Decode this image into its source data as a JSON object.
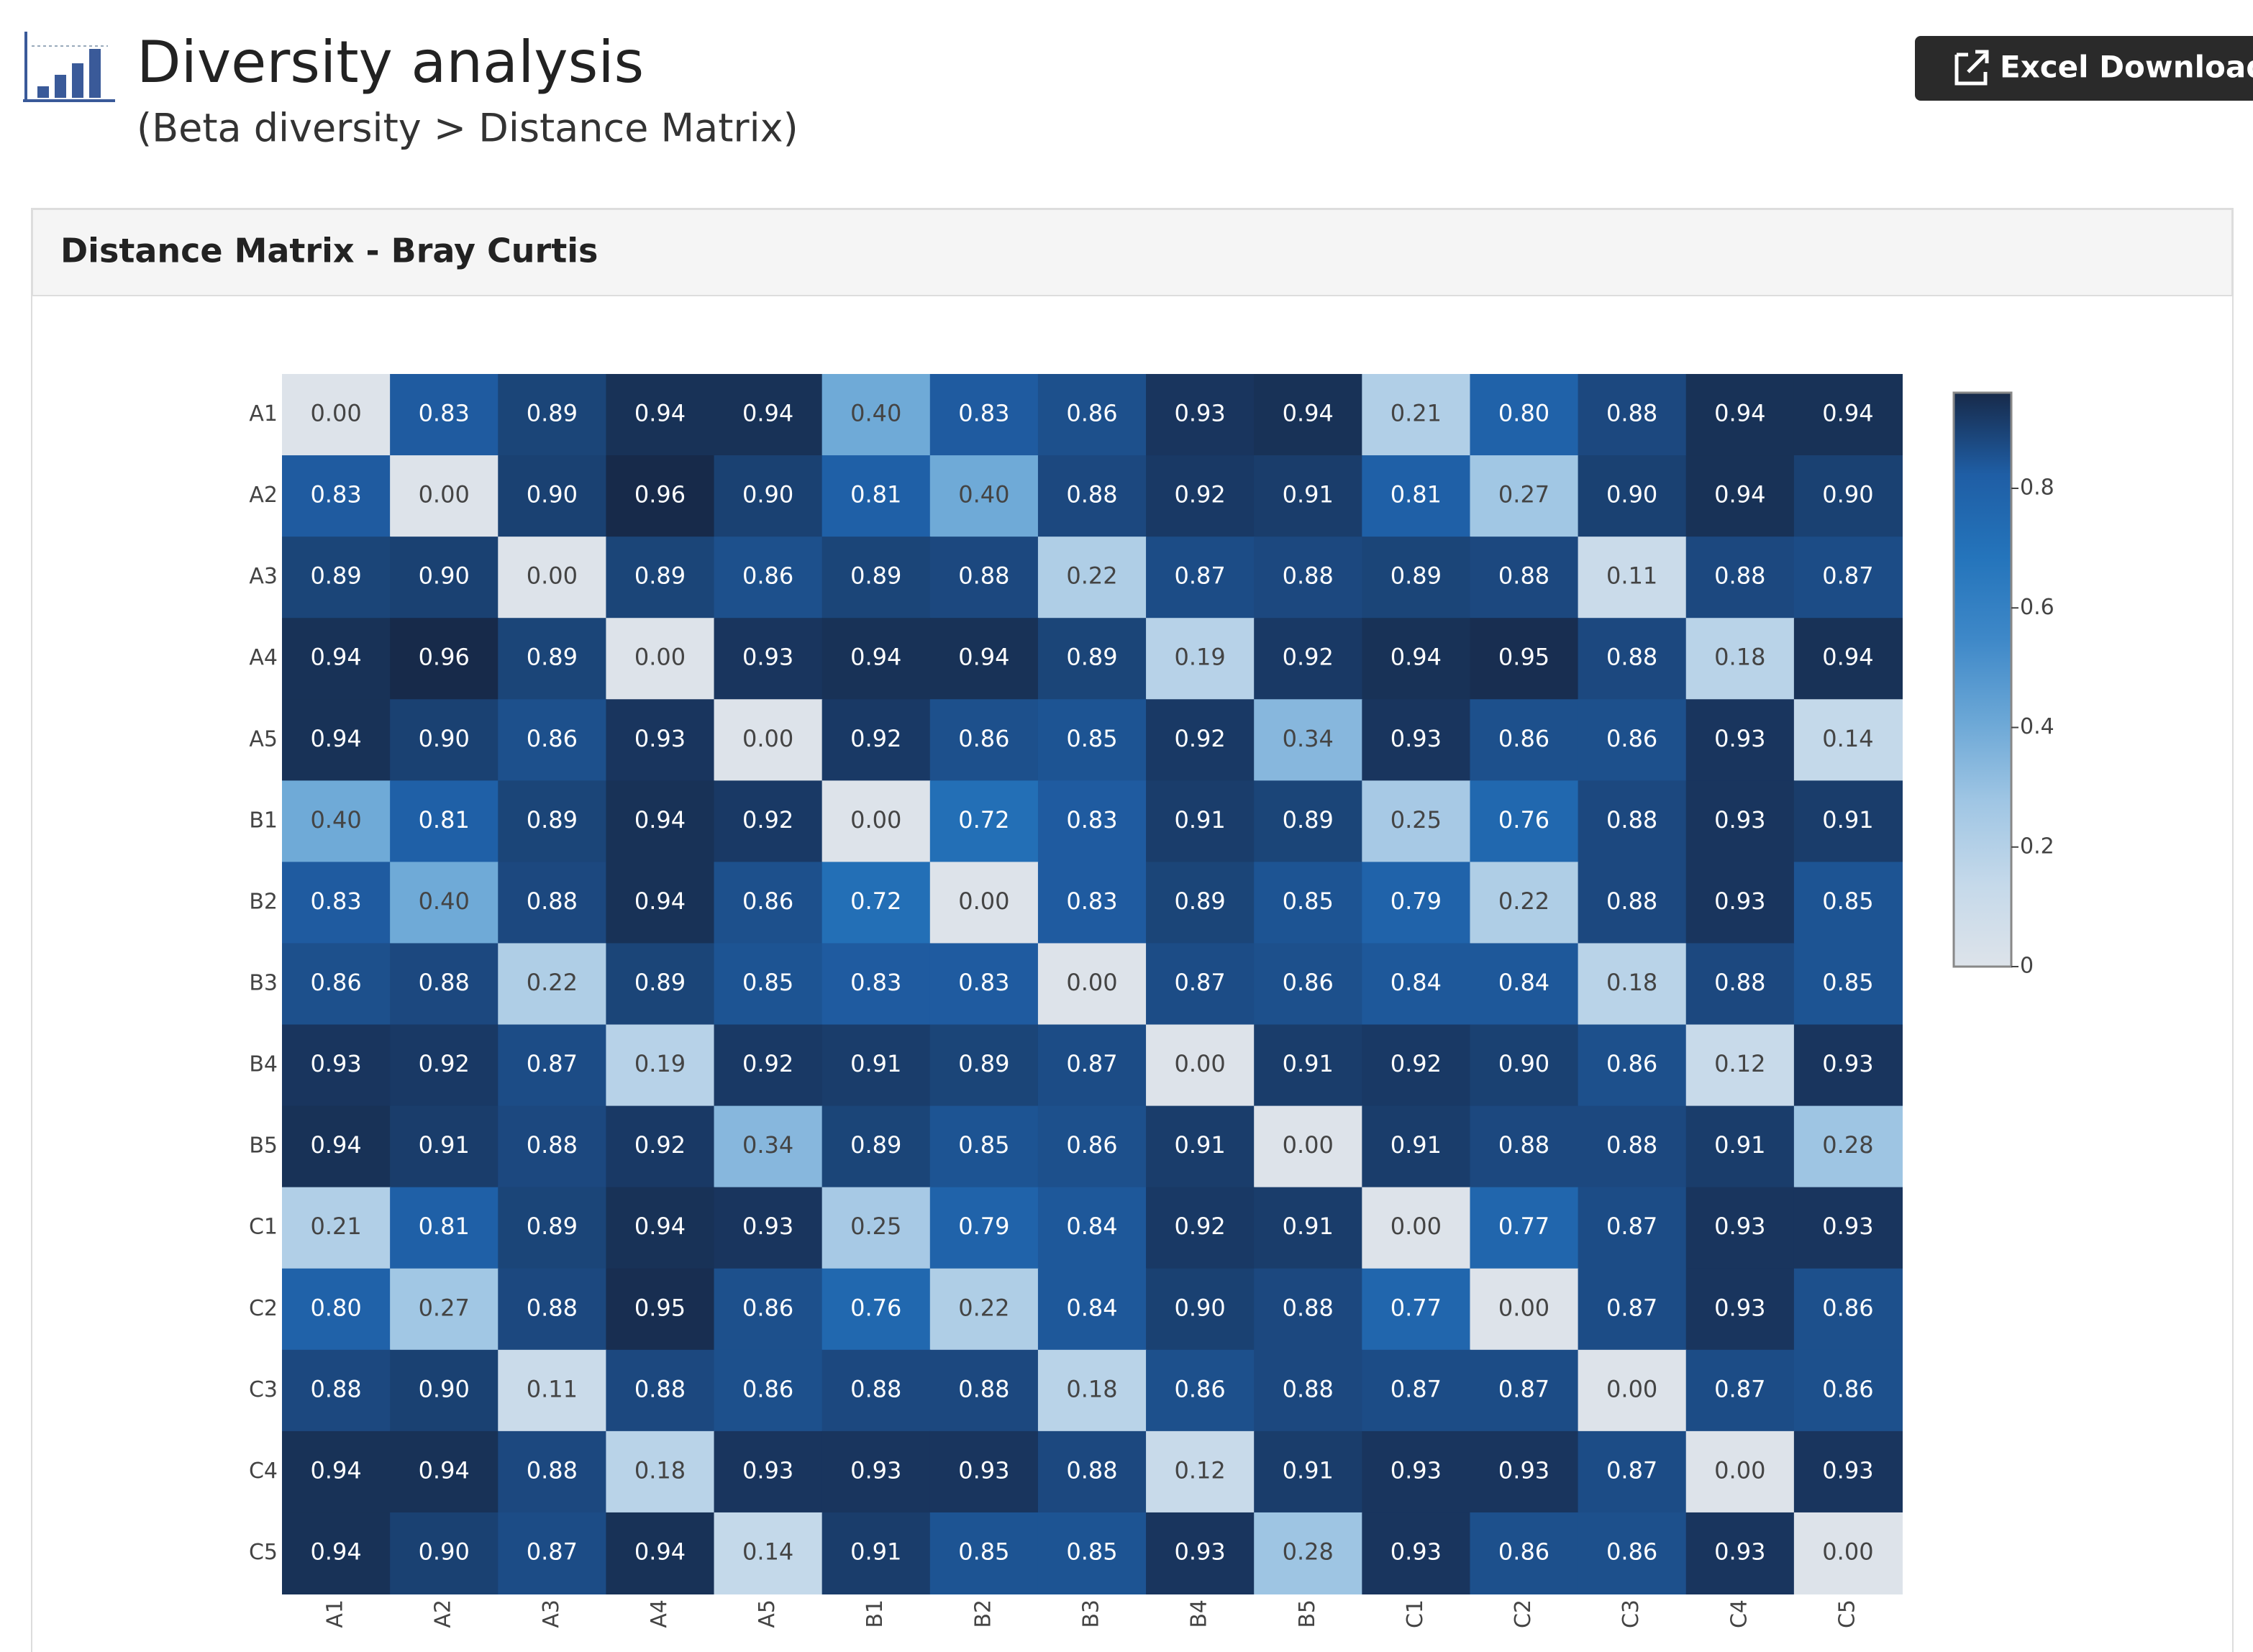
{
  "header": {
    "title": "Diversity analysis",
    "subtitle": "(Beta diversity > Distance Matrix)",
    "button": "Excel Download"
  },
  "panel": {
    "title": "Distance Matrix - Bray Curtis"
  },
  "chart_data": {
    "type": "heatmap",
    "x": [
      "A1",
      "A2",
      "A3",
      "A4",
      "A5",
      "B1",
      "B2",
      "B3",
      "B4",
      "B5",
      "C1",
      "C2",
      "C3",
      "C4",
      "C5"
    ],
    "y": [
      "A1",
      "A2",
      "A3",
      "A4",
      "A5",
      "B1",
      "B2",
      "B3",
      "B4",
      "B5",
      "C1",
      "C2",
      "C3",
      "C4",
      "C5"
    ],
    "values": [
      [
        0,
        0.83,
        0.89,
        0.94,
        0.94,
        0.4,
        0.83,
        0.86,
        0.93,
        0.94,
        0.21,
        0.8,
        0.88,
        0.94,
        0.94
      ],
      [
        0.83,
        0,
        0.9,
        0.96,
        0.9,
        0.81,
        0.4,
        0.88,
        0.92,
        0.91,
        0.81,
        0.27,
        0.9,
        0.94,
        0.9
      ],
      [
        0.89,
        0.9,
        0,
        0.89,
        0.86,
        0.89,
        0.88,
        0.22,
        0.87,
        0.88,
        0.89,
        0.88,
        0.11,
        0.88,
        0.87
      ],
      [
        0.94,
        0.96,
        0.89,
        0,
        0.93,
        0.94,
        0.94,
        0.89,
        0.19,
        0.92,
        0.94,
        0.95,
        0.88,
        0.18,
        0.94
      ],
      [
        0.94,
        0.9,
        0.86,
        0.93,
        0,
        0.92,
        0.86,
        0.85,
        0.92,
        0.34,
        0.93,
        0.86,
        0.86,
        0.93,
        0.14
      ],
      [
        0.4,
        0.81,
        0.89,
        0.94,
        0.92,
        0,
        0.72,
        0.83,
        0.91,
        0.89,
        0.25,
        0.76,
        0.88,
        0.93,
        0.91
      ],
      [
        0.83,
        0.4,
        0.88,
        0.94,
        0.86,
        0.72,
        0,
        0.83,
        0.89,
        0.85,
        0.79,
        0.22,
        0.88,
        0.93,
        0.85
      ],
      [
        0.86,
        0.88,
        0.22,
        0.89,
        0.85,
        0.83,
        0.83,
        0,
        0.87,
        0.86,
        0.84,
        0.84,
        0.18,
        0.88,
        0.85
      ],
      [
        0.93,
        0.92,
        0.87,
        0.19,
        0.92,
        0.91,
        0.89,
        0.87,
        0,
        0.91,
        0.92,
        0.9,
        0.86,
        0.12,
        0.93
      ],
      [
        0.94,
        0.91,
        0.88,
        0.92,
        0.34,
        0.89,
        0.85,
        0.86,
        0.91,
        0,
        0.91,
        0.88,
        0.88,
        0.91,
        0.28
      ],
      [
        0.21,
        0.81,
        0.89,
        0.94,
        0.93,
        0.25,
        0.79,
        0.84,
        0.92,
        0.91,
        0,
        0.77,
        0.87,
        0.93,
        0.93
      ],
      [
        0.8,
        0.27,
        0.88,
        0.95,
        0.86,
        0.76,
        0.22,
        0.84,
        0.9,
        0.88,
        0.77,
        0,
        0.87,
        0.93,
        0.86
      ],
      [
        0.88,
        0.9,
        0.11,
        0.88,
        0.86,
        0.88,
        0.88,
        0.18,
        0.86,
        0.88,
        0.87,
        0.87,
        0,
        0.87,
        0.86
      ],
      [
        0.94,
        0.94,
        0.88,
        0.18,
        0.93,
        0.93,
        0.93,
        0.88,
        0.12,
        0.91,
        0.93,
        0.93,
        0.87,
        0,
        0.93
      ],
      [
        0.94,
        0.9,
        0.87,
        0.94,
        0.14,
        0.91,
        0.85,
        0.85,
        0.93,
        0.28,
        0.93,
        0.86,
        0.86,
        0.93,
        0
      ]
    ],
    "value_labels": [
      [
        "0.00",
        "0.83",
        "0.89",
        "0.94",
        "0.94",
        "0.40",
        "0.83",
        "0.86",
        "0.93",
        "0.94",
        "0.21",
        "0.80",
        "0.88",
        "0.94",
        "0.94"
      ],
      [
        "0.83",
        "0.00",
        "0.90",
        "0.96",
        "0.90",
        "0.81",
        "0.40",
        "0.88",
        "0.92",
        "0.91",
        "0.81",
        "0.27",
        "0.90",
        "0.94",
        "0.90"
      ],
      [
        "0.89",
        "0.90",
        "0.00",
        "0.89",
        "0.86",
        "0.89",
        "0.88",
        "0.22",
        "0.87",
        "0.88",
        "0.89",
        "0.88",
        "0.11",
        "0.88",
        "0.87"
      ],
      [
        "0.94",
        "0.96",
        "0.89",
        "0.00",
        "0.93",
        "0.94",
        "0.94",
        "0.89",
        "0.19",
        "0.92",
        "0.94",
        "0.95",
        "0.88",
        "0.18",
        "0.94"
      ],
      [
        "0.94",
        "0.90",
        "0.86",
        "0.93",
        "0.00",
        "0.92",
        "0.86",
        "0.85",
        "0.92",
        "0.34",
        "0.93",
        "0.86",
        "0.86",
        "0.93",
        "0.14"
      ],
      [
        "0.40",
        "0.81",
        "0.89",
        "0.94",
        "0.92",
        "0.00",
        "0.72",
        "0.83",
        "0.91",
        "0.89",
        "0.25",
        "0.76",
        "0.88",
        "0.93",
        "0.91"
      ],
      [
        "0.83",
        "0.40",
        "0.88",
        "0.94",
        "0.86",
        "0.72",
        "0.00",
        "0.83",
        "0.89",
        "0.85",
        "0.79",
        "0.22",
        "0.88",
        "0.93",
        "0.85"
      ],
      [
        "0.86",
        "0.88",
        "0.22",
        "0.89",
        "0.85",
        "0.83",
        "0.83",
        "0.00",
        "0.87",
        "0.86",
        "0.84",
        "0.84",
        "0.18",
        "0.88",
        "0.85"
      ],
      [
        "0.93",
        "0.92",
        "0.87",
        "0.19",
        "0.92",
        "0.91",
        "0.89",
        "0.87",
        "0.00",
        "0.91",
        "0.92",
        "0.90",
        "0.86",
        "0.12",
        "0.93"
      ],
      [
        "0.94",
        "0.91",
        "0.88",
        "0.92",
        "0.34",
        "0.89",
        "0.85",
        "0.86",
        "0.91",
        "0.00",
        "0.91",
        "0.88",
        "0.88",
        "0.91",
        "0.28"
      ],
      [
        "0.21",
        "0.81",
        "0.89",
        "0.94",
        "0.93",
        "0.25",
        "0.79",
        "0.84",
        "0.92",
        "0.91",
        "0.00",
        "0.77",
        "0.87",
        "0.93",
        "0.93"
      ],
      [
        "0.80",
        "0.27",
        "0.88",
        "0.95",
        "0.86",
        "0.76",
        "0.22",
        "0.84",
        "0.90",
        "0.88",
        "0.77",
        "0.00",
        "0.87",
        "0.93",
        "0.86"
      ],
      [
        "0.88",
        "0.90",
        "0.11",
        "0.88",
        "0.86",
        "0.88",
        "0.88",
        "0.18",
        "0.86",
        "0.88",
        "0.87",
        "0.87",
        "0.00",
        "0.87",
        "0.86"
      ],
      [
        "0.94",
        "0.94",
        "0.88",
        "0.18",
        "0.93",
        "0.93",
        "0.93",
        "0.88",
        "0.12",
        "0.91",
        "0.93",
        "0.93",
        "0.87",
        "0.00",
        "0.93"
      ],
      [
        "0.94",
        "0.90",
        "0.87",
        "0.94",
        "0.14",
        "0.91",
        "0.85",
        "0.85",
        "0.93",
        "0.28",
        "0.93",
        "0.86",
        "0.86",
        "0.93",
        "0.00"
      ]
    ],
    "zlim": [
      0,
      0.96
    ],
    "zticks": [
      0,
      0.2,
      0.4,
      0.6,
      0.8
    ],
    "colorscale": [
      "#dde3ea",
      "#c5d9ea",
      "#a0c6e4",
      "#6ba7d6",
      "#3e88c8",
      "#2474bb",
      "#1f5ea5",
      "#172a4a"
    ]
  }
}
